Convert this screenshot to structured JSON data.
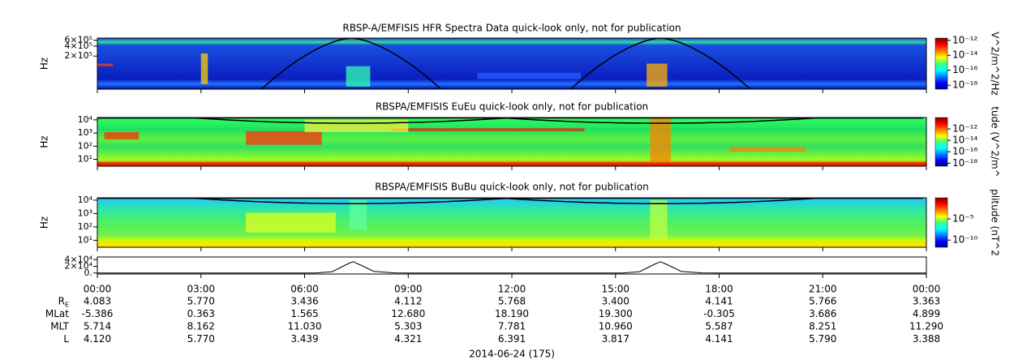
{
  "chart_data": [
    {
      "type": "spectrogram",
      "title": "RBSP-A/EMFISIS  HFR Spectra Data quick-look only, not for publication",
      "ylabel": "Hz",
      "ylog": true,
      "ylim": [
        20000,
        700000
      ],
      "yticks": [
        {
          "value": 200000,
          "label": "2×10⁵"
        },
        {
          "value": 400000,
          "label": "4×10⁵"
        },
        {
          "value": 600000,
          "label": "6×10⁵"
        }
      ],
      "colorbar": {
        "label": "V^2/m^2/Hz",
        "log": true,
        "clim": [
          3e-19,
          2e-12
        ],
        "ticks": [
          {
            "value": 1e-12,
            "label": "10⁻¹²"
          },
          {
            "value": 1e-14,
            "label": "10⁻¹⁴"
          },
          {
            "value": 1e-16,
            "label": "10⁻¹⁶"
          },
          {
            "value": 1e-18,
            "label": "10⁻¹⁸"
          }
        ]
      }
    },
    {
      "type": "spectrogram",
      "title": "RBSPA/EMFISIS  EuEu quick-look only, not for publication",
      "ylabel": "Hz",
      "ylog": true,
      "ylim": [
        3,
        15000
      ],
      "yticks": [
        {
          "value": 10,
          "label": "10¹"
        },
        {
          "value": 100,
          "label": "10²"
        },
        {
          "value": 1000,
          "label": "10³"
        },
        {
          "value": 10000,
          "label": "10⁴"
        }
      ],
      "colorbar": {
        "label": "tude (V^2/m^",
        "log": true,
        "clim": [
          3e-19,
          1e-10
        ],
        "ticks": [
          {
            "value": 1e-12,
            "label": "10⁻¹²"
          },
          {
            "value": 1e-14,
            "label": "10⁻¹⁴"
          },
          {
            "value": 1e-16,
            "label": "10⁻¹⁶"
          },
          {
            "value": 1e-18,
            "label": "10⁻¹⁸"
          }
        ]
      }
    },
    {
      "type": "spectrogram",
      "title": "RBSPA/EMFISIS  BuBu quick-look only, not for publication",
      "ylabel": "Hz",
      "ylog": true,
      "ylim": [
        3,
        15000
      ],
      "yticks": [
        {
          "value": 10,
          "label": "10¹"
        },
        {
          "value": 100,
          "label": "10²"
        },
        {
          "value": 1000,
          "label": "10³"
        },
        {
          "value": 10000,
          "label": "10⁴"
        }
      ],
      "colorbar": {
        "label": "plitude (nT^2",
        "log": true,
        "clim": [
          2e-12,
          1
        ],
        "ticks": [
          {
            "value": 1e-05,
            "label": "10⁻⁵"
          },
          {
            "value": 1e-10,
            "label": "10⁻¹⁰"
          }
        ]
      }
    },
    {
      "type": "line",
      "ylim": [
        -3000,
        48000
      ],
      "yticks": [
        {
          "value": 0,
          "label": "0."
        },
        {
          "value": 20000,
          "label": "2×10⁴"
        },
        {
          "value": 40000,
          "label": "4×10⁴"
        }
      ],
      "color": "#000000",
      "x": [
        0,
        6.3,
        6.8,
        7.2,
        7.4,
        7.6,
        8.0,
        8.6,
        9,
        15.2,
        15.7,
        16.1,
        16.3,
        16.5,
        16.9,
        17.5,
        18,
        24
      ],
      "values": [
        0,
        0,
        4000,
        25000,
        34000,
        25000,
        5000,
        500,
        0,
        0,
        4000,
        25000,
        34000,
        25000,
        5000,
        500,
        0,
        0
      ]
    }
  ],
  "x_axis": {
    "xlim": [
      0,
      24
    ],
    "xticks": [
      {
        "value": 0,
        "label": "00:00"
      },
      {
        "value": 3,
        "label": "03:00"
      },
      {
        "value": 6,
        "label": "06:00"
      },
      {
        "value": 9,
        "label": "09:00"
      },
      {
        "value": 12,
        "label": "12:00"
      },
      {
        "value": 15,
        "label": "15:00"
      },
      {
        "value": 18,
        "label": "18:00"
      },
      {
        "value": 21,
        "label": "21:00"
      },
      {
        "value": 24,
        "label": "00:00"
      }
    ]
  },
  "ephemeris": [
    {
      "label": "R",
      "label_sub": "E",
      "values": [
        "4.083",
        "5.770",
        "3.436",
        "4.112",
        "5.768",
        "3.400",
        "4.141",
        "5.766",
        "3.363"
      ]
    },
    {
      "label": "MLat",
      "values": [
        "-5.386",
        "0.363",
        "1.565",
        "12.680",
        "18.190",
        "19.300",
        "-0.305",
        "3.686",
        "4.899"
      ]
    },
    {
      "label": "MLT",
      "values": [
        "5.714",
        "8.162",
        "11.030",
        "5.303",
        "7.781",
        "10.960",
        "5.587",
        "8.251",
        "11.290"
      ]
    },
    {
      "label": "L",
      "values": [
        "4.120",
        "5.770",
        "3.439",
        "4.321",
        "6.391",
        "3.817",
        "4.141",
        "5.790",
        "3.388"
      ]
    }
  ],
  "date": "2014-06-24 (175)"
}
